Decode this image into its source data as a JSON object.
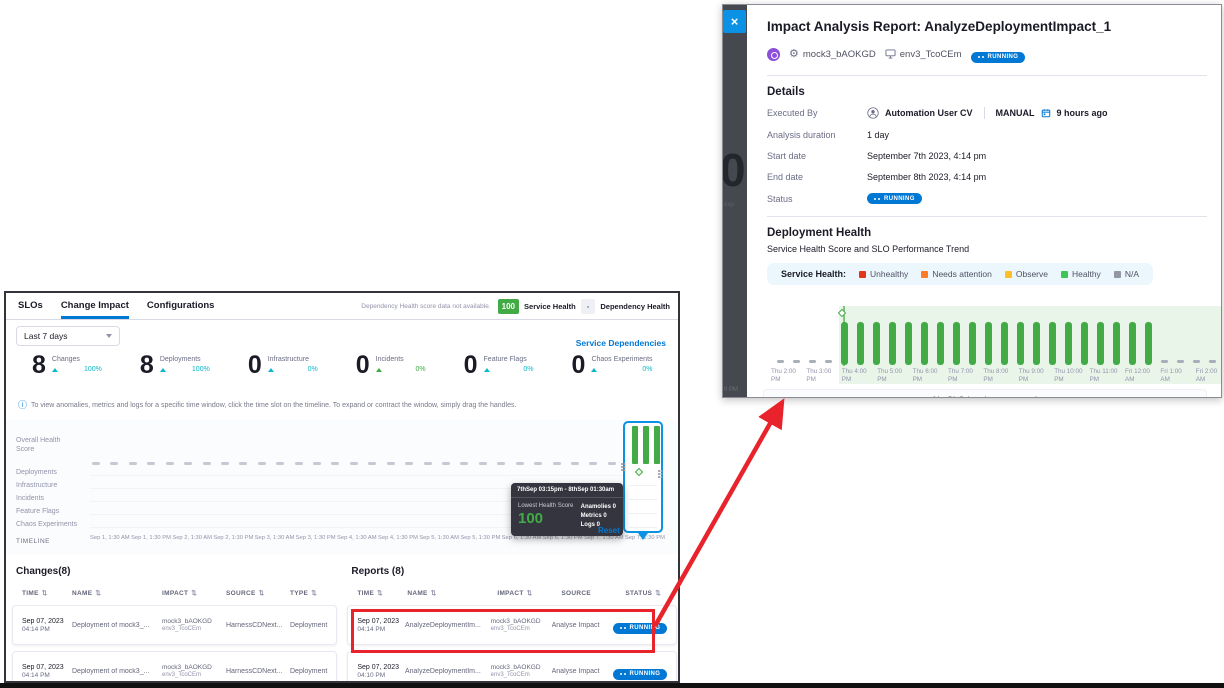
{
  "icons": {
    "info": "ⓘ",
    "gear": "⚙",
    "sort": "⇅",
    "close": "×"
  },
  "annotation": {
    "color": "#e8232b"
  },
  "dashboard": {
    "tabs": [
      {
        "label": "SLOs",
        "active": false
      },
      {
        "label": "Change Impact",
        "active": true
      },
      {
        "label": "Configurations",
        "active": false
      }
    ],
    "header": {
      "note": "Dependency Health score data not available.",
      "service_health_score": "100",
      "service_health_label": "Service Health",
      "dependency_health_score": "-",
      "dependency_health_label": "Dependency Health"
    },
    "time_filter": "Last 7 days",
    "service_dependencies_link": "Service Dependencies",
    "stats": [
      {
        "value": "8",
        "label": "Changes",
        "delta": "100%",
        "color": "#0bb8c7"
      },
      {
        "value": "8",
        "label": "Deployments",
        "delta": "100%",
        "color": "#0bb8c7"
      },
      {
        "value": "0",
        "label": "Infrastructure",
        "delta": "0%",
        "color": "#0bb8c7"
      },
      {
        "value": "0",
        "label": "Incidents",
        "delta": "0%",
        "color": "#42ab45"
      },
      {
        "value": "0",
        "label": "Feature Flags",
        "delta": "0%",
        "color": "#0bb8c7"
      },
      {
        "value": "0",
        "label": "Chaos Experiments",
        "delta": "0%",
        "color": "#0bb8c7"
      }
    ],
    "info_banner": "To view anomalies, metrics and logs for a specific time window, click the time slot on the timeline. To expand or contract the window, simply drag the handles.",
    "timeline": {
      "rows": [
        "Overall Health Score",
        "Deployments",
        "Infrastructure",
        "Incidents",
        "Feature Flags",
        "Chaos Experiments"
      ],
      "axis_label": "TIMELINE",
      "ticks": [
        "Sep 1, 1:30 AM",
        "Sep 1, 1:30 PM",
        "Sep 2, 1:30 AM",
        "Sep 2, 1:30 PM",
        "Sep 3, 1:30 AM",
        "Sep 3, 1:30 PM",
        "Sep 4, 1:30 AM",
        "Sep 4, 1:30 PM",
        "Sep 5, 1:30 AM",
        "Sep 5, 1:30 PM",
        "Sep 6, 1:30 AM",
        "Sep 6, 1:30 PM",
        "Sep 7, 1:30 AM",
        "Sep 7, 1:30 PM"
      ],
      "reset_label": "Reset",
      "selection_bars": [
        100,
        100,
        100
      ],
      "tooltip": {
        "range": "7thSep 03:15pm - 8thSep 01:30am",
        "score_label": "Lowest Health Score",
        "score": "100",
        "items": [
          "Anamolies 0",
          "Metrics 0",
          "Logs 0"
        ]
      }
    },
    "changes_table": {
      "title": "Changes(8)",
      "columns": [
        {
          "label": "TIME",
          "sortable": true
        },
        {
          "label": "NAME",
          "sortable": true
        },
        {
          "label": "IMPACT",
          "sortable": true
        },
        {
          "label": "SOURCE",
          "sortable": true
        },
        {
          "label": "TYPE",
          "sortable": true
        }
      ],
      "rows": [
        {
          "date": "Sep 07, 2023",
          "time": "04:14 PM",
          "name": "Deployment of mock3_...",
          "impact_service": "mock3_bAOKGD",
          "impact_env": "env3_TcoCEm",
          "source": "HarnessCDNext...",
          "type": "Deployment"
        },
        {
          "date": "Sep 07, 2023",
          "time": "04:14 PM",
          "name": "Deployment of mock3_...",
          "impact_service": "mock3_bAOKGD",
          "impact_env": "env3_TcoCEm",
          "source": "HarnessCDNext...",
          "type": "Deployment"
        }
      ]
    },
    "reports_table": {
      "title": "Reports (8)",
      "columns": [
        {
          "label": "TIME",
          "sortable": true
        },
        {
          "label": "NAME",
          "sortable": true
        },
        {
          "label": "IMPACT",
          "sortable": true
        },
        {
          "label": "SOURCE",
          "sortable": false
        },
        {
          "label": "STATUS",
          "sortable": true
        }
      ],
      "rows": [
        {
          "date": "Sep 07, 2023",
          "time": "04:14 PM",
          "name": "AnalyzeDeploymentIm...",
          "impact_service": "mock3_bAOKGD",
          "impact_env": "env3_TcoCEm",
          "source": "Analyse Impact",
          "status": "RUNNING"
        },
        {
          "date": "Sep 07, 2023",
          "time": "04:10 PM",
          "name": "AnalyzeDeploymentIm...",
          "impact_service": "mock3_bAOKGD",
          "impact_env": "env3_TcoCEm",
          "source": "Analyse Impact",
          "status": "RUNNING"
        }
      ]
    }
  },
  "drawer": {
    "title": "Impact Analysis Report: AnalyzeDeploymentImpact_1",
    "service_name": "mock3_bAOKGD",
    "environment_name": "env3_TcoCEm",
    "status": "RUNNING",
    "dimmed_background_texts": {
      "big_zero": "0",
      "partial_text": "exp",
      "axis_fragment": "0 PM"
    },
    "details": {
      "heading": "Details",
      "executed_by_label": "Executed By",
      "executed_by": "Automation User CV",
      "trigger": "MANUAL",
      "executed_ago": "9 hours ago",
      "duration_label": "Analysis duration",
      "duration": "1 day",
      "start_label": "Start date",
      "start": "September 7th 2023, 4:14 pm",
      "end_label": "End date",
      "end": "September 8th 2023, 4:14 pm",
      "status_label": "Status"
    },
    "deployment_health": {
      "heading": "Deployment Health",
      "subheading": "Service Health Score and SLO Performance Trend",
      "legend_label": "Service Health:",
      "legend": [
        {
          "label": "Unhealthy",
          "color": "#e3341c"
        },
        {
          "label": "Needs attention",
          "color": "#ff7b26"
        },
        {
          "label": "Observe",
          "color": "#fcc026"
        },
        {
          "label": "Healthy",
          "color": "#3dc655"
        },
        {
          "label": "N/A",
          "color": "#9596a5"
        }
      ],
      "no_slo_message": "No SLO has been created"
    }
  },
  "chart_data": {
    "type": "bar",
    "title": "Service Health Score and SLO Performance Trend",
    "x_ticks": [
      "Thu 2:00 PM",
      "Thu 3:00 PM",
      "Thu 4:00 PM",
      "Thu 5:00 PM",
      "Thu 6:00 PM",
      "Thu 7:00 PM",
      "Thu 8:00 PM",
      "Thu 9:00 PM",
      "Thu 10:00 PM",
      "Thu 11:00 PM",
      "Fri 12:00 AM",
      "Fri 1:00 AM",
      "Fri 2:00 AM"
    ],
    "ylim": [
      0,
      100
    ],
    "bar_color": "#42ab45",
    "na_color": "#a9adbb",
    "series": [
      {
        "name": "Service Health Score",
        "values": [
          null,
          null,
          null,
          null,
          100,
          100,
          100,
          100,
          100,
          100,
          100,
          100,
          100,
          100,
          100,
          100,
          100,
          100,
          100,
          100,
          100,
          100,
          100,
          100,
          null,
          null,
          null,
          null
        ]
      }
    ],
    "annotations": [
      "Green vertical marker with diamond at Thu 4:00 PM (analysis start)",
      "Shaded healthy region from Thu 4:00 PM to right edge",
      "Null values rendered as gray N/A dashes"
    ]
  }
}
